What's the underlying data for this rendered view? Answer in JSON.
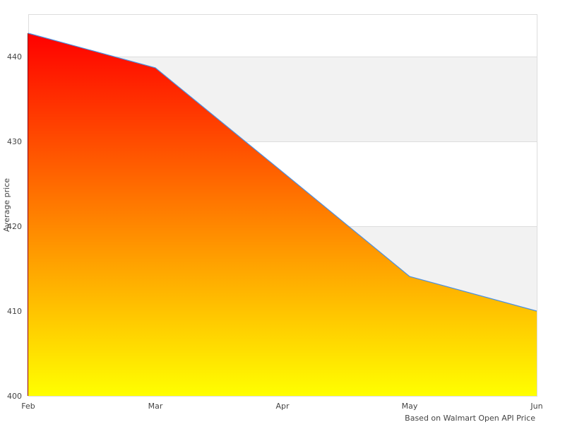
{
  "chart_data": {
    "type": "area",
    "title": "",
    "xlabel": "",
    "ylabel": "Average price",
    "credit": "Based on Walmart Open API Price",
    "categories": [
      "Feb",
      "Mar",
      "Apr",
      "May",
      "Jun"
    ],
    "values": [
      442.75,
      438.67,
      426.4,
      414.08,
      410.0
    ],
    "ylim": [
      400,
      445
    ],
    "yticks": [
      400,
      410,
      420,
      430,
      440
    ],
    "grid": true,
    "grid_bands": [
      "#ffffff",
      "#f2f2f2"
    ],
    "fill_gradient": {
      "top": "#ff0000",
      "bottom": "#ffff00"
    },
    "line_color": "#4a90e2"
  }
}
